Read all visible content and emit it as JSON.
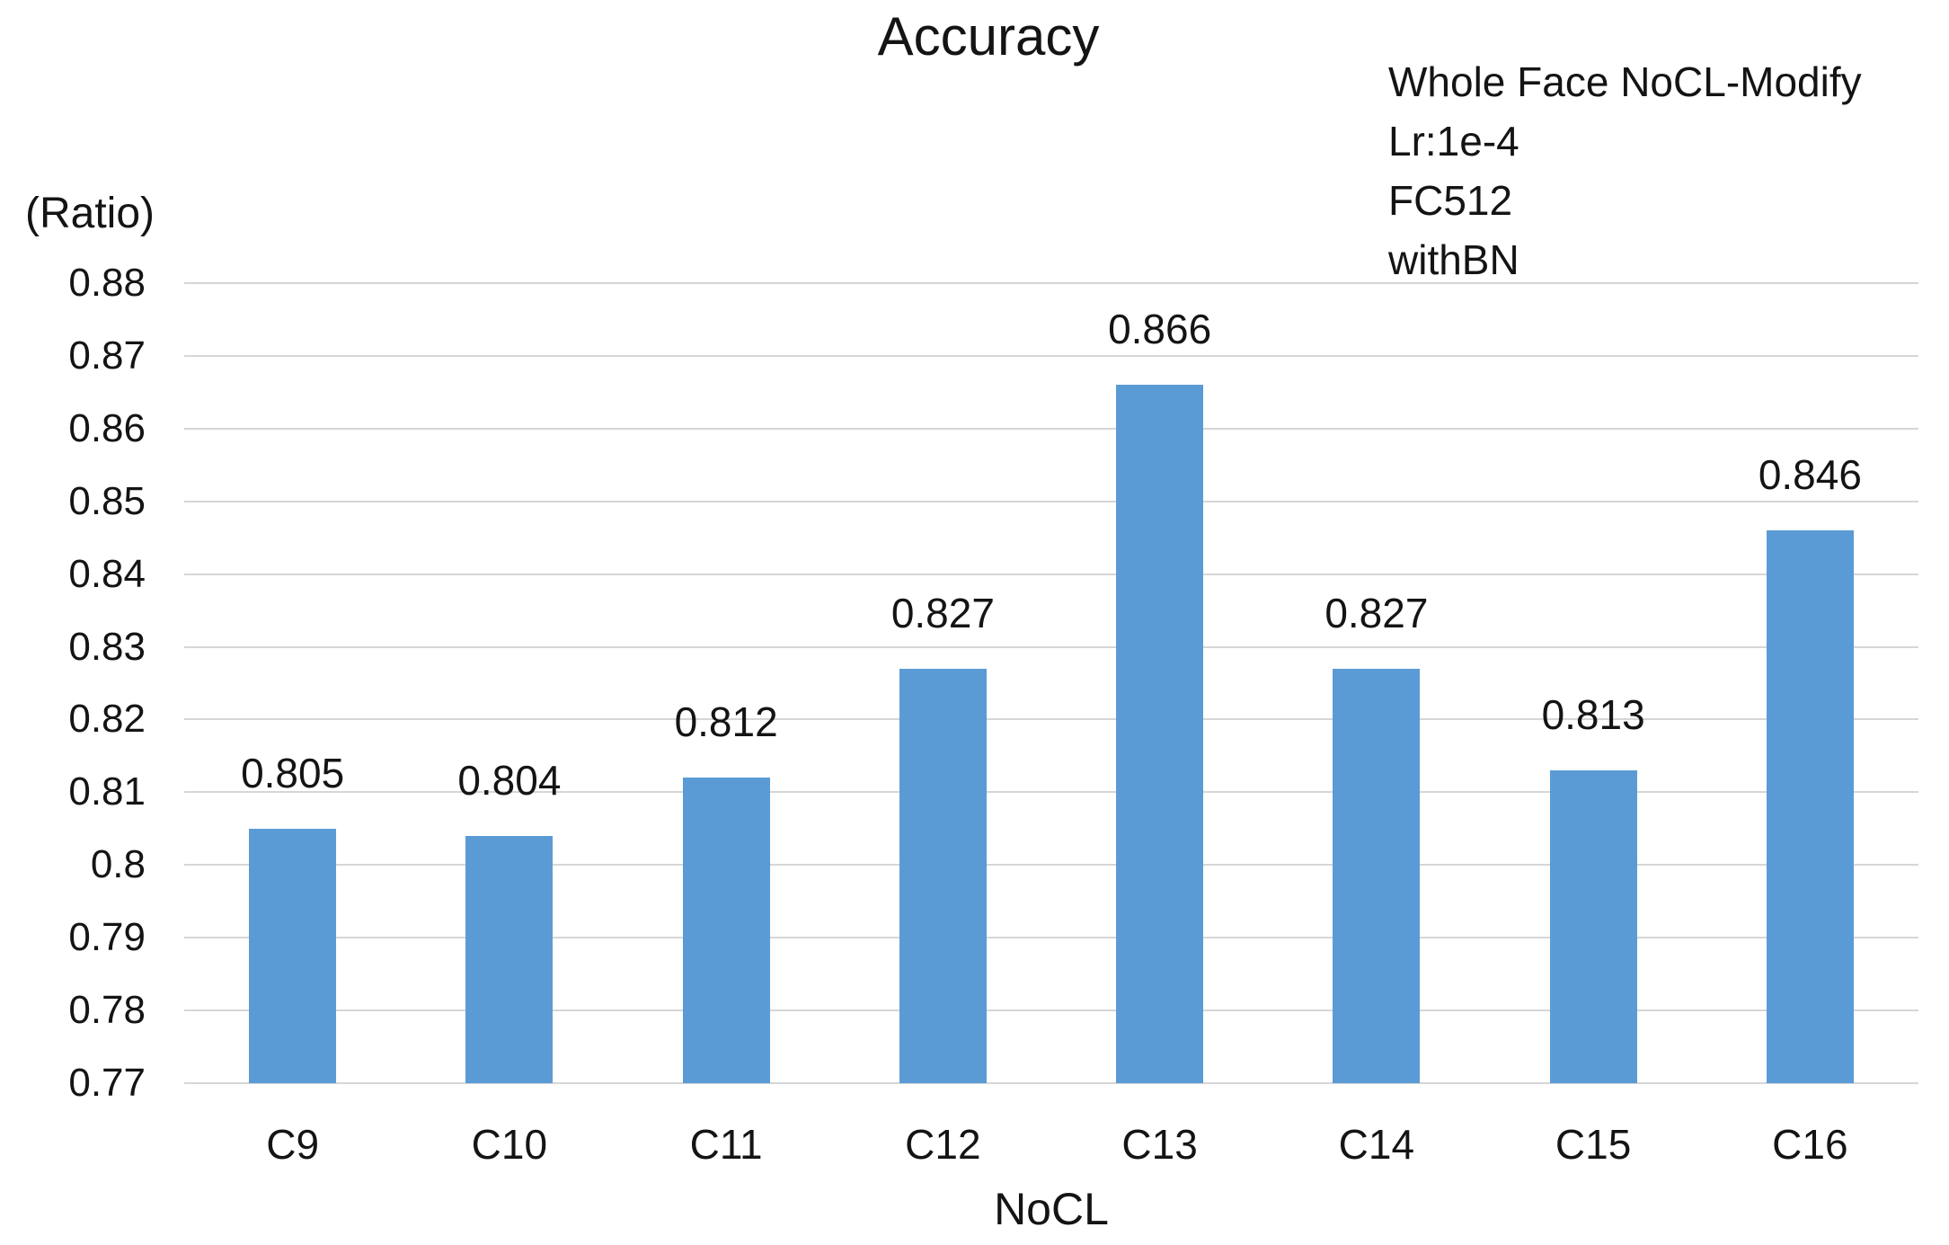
{
  "chart_data": {
    "type": "bar",
    "title": "Accuracy",
    "categories": [
      "C9",
      "C10",
      "C11",
      "C12",
      "C13",
      "C14",
      "C15",
      "C16"
    ],
    "values": [
      0.805,
      0.804,
      0.812,
      0.827,
      0.866,
      0.827,
      0.813,
      0.846
    ],
    "value_labels": [
      "0.805",
      "0.804",
      "0.812",
      "0.827",
      "0.866",
      "0.827",
      "0.813",
      "0.846"
    ],
    "xlabel": "NoCL",
    "ylabel": "(Ratio)",
    "ylim": [
      0.77,
      0.88
    ],
    "ytick_step": 0.01,
    "ytick_labels": [
      "0.77",
      "0.78",
      "0.79",
      "0.8",
      "0.81",
      "0.82",
      "0.83",
      "0.84",
      "0.85",
      "0.86",
      "0.87",
      "0.88"
    ],
    "grid": true,
    "legend": "none",
    "annotation_lines": [
      "Whole Face NoCL-Modify",
      "Lr:1e-4",
      "FC512",
      "withBN"
    ],
    "colors": {
      "bar": "#5B9BD5",
      "gridline": "#D6D6D6",
      "text": "#141414",
      "background": "#FFFFFF"
    }
  }
}
